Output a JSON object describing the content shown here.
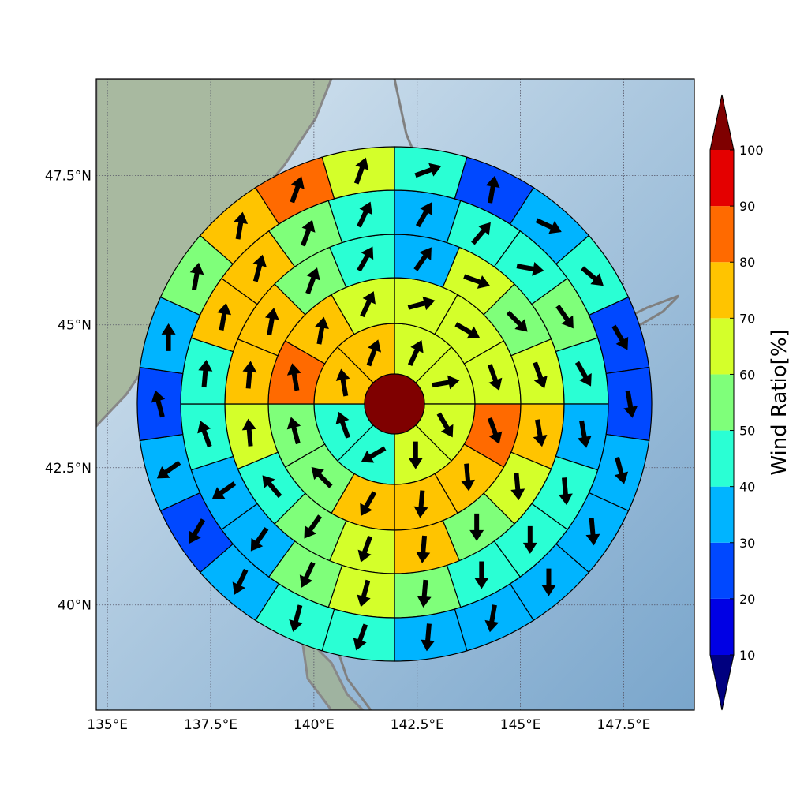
{
  "map": {
    "xlim": [
      134.73,
      149.21
    ],
    "ylim": [
      38.02,
      49.06
    ],
    "xticks": [
      {
        "value": 135,
        "label": "135°E"
      },
      {
        "value": 137.5,
        "label": "137.5°E"
      },
      {
        "value": 140,
        "label": "140°E"
      },
      {
        "value": 142.5,
        "label": "142.5°E"
      },
      {
        "value": 145,
        "label": "145°E"
      },
      {
        "value": 147.5,
        "label": "147.5°E"
      }
    ],
    "yticks": [
      {
        "value": 40,
        "label": "40°N"
      },
      {
        "value": 42.5,
        "label": "42.5°N"
      },
      {
        "value": 45,
        "label": "45°N"
      },
      {
        "value": 47.5,
        "label": "47.5°N"
      }
    ],
    "grid": true
  },
  "colorbar": {
    "label": "Wind Ratio[%]",
    "levels": [
      10,
      20,
      30,
      40,
      50,
      60,
      70,
      80,
      90,
      100
    ],
    "colors": [
      "#0000e4",
      "#0048ff",
      "#00b4ff",
      "#2affd4",
      "#7fff7a",
      "#d4ff2a",
      "#ffc400",
      "#ff6a00",
      "#e40000"
    ],
    "under_color": "#00007f",
    "over_color": "#7f0000"
  },
  "center_value": 100,
  "rings": [
    {
      "values": [
        65,
        65,
        65,
        65,
        45,
        45,
        75,
        75
      ],
      "directions": [
        25,
        80,
        150,
        180,
        240,
        340,
        350,
        20
      ]
    },
    {
      "values": [
        65,
        65,
        65,
        85,
        75,
        75,
        75,
        55,
        55,
        85,
        75,
        65
      ],
      "directions": [
        75,
        120,
        160,
        160,
        175,
        185,
        210,
        315,
        345,
        350,
        10,
        25
      ]
    },
    {
      "values": [
        35,
        65,
        55,
        65,
        75,
        65,
        55,
        75,
        65,
        55,
        45,
        65,
        75,
        75,
        55,
        45
      ],
      "directions": [
        35,
        110,
        135,
        160,
        170,
        175,
        180,
        185,
        200,
        215,
        320,
        355,
        5,
        10,
        20,
        30
      ]
    },
    {
      "values": [
        35,
        45,
        45,
        55,
        45,
        35,
        45,
        45,
        45,
        55,
        65,
        55,
        35,
        35,
        45,
        45,
        75,
        75,
        55,
        45
      ],
      "directions": [
        30,
        40,
        100,
        145,
        150,
        170,
        175,
        180,
        180,
        185,
        195,
        205,
        215,
        235,
        340,
        5,
        10,
        15,
        20,
        25
      ]
    },
    {
      "values": [
        45,
        25,
        35,
        45,
        25,
        25,
        35,
        35,
        35,
        35,
        35,
        45,
        45,
        35,
        25,
        35,
        25,
        35,
        55,
        75,
        85,
        65
      ],
      "directions": [
        70,
        10,
        115,
        130,
        150,
        170,
        165,
        175,
        180,
        190,
        185,
        200,
        195,
        205,
        210,
        235,
        345,
        0,
        10,
        10,
        20,
        20
      ]
    }
  ]
}
